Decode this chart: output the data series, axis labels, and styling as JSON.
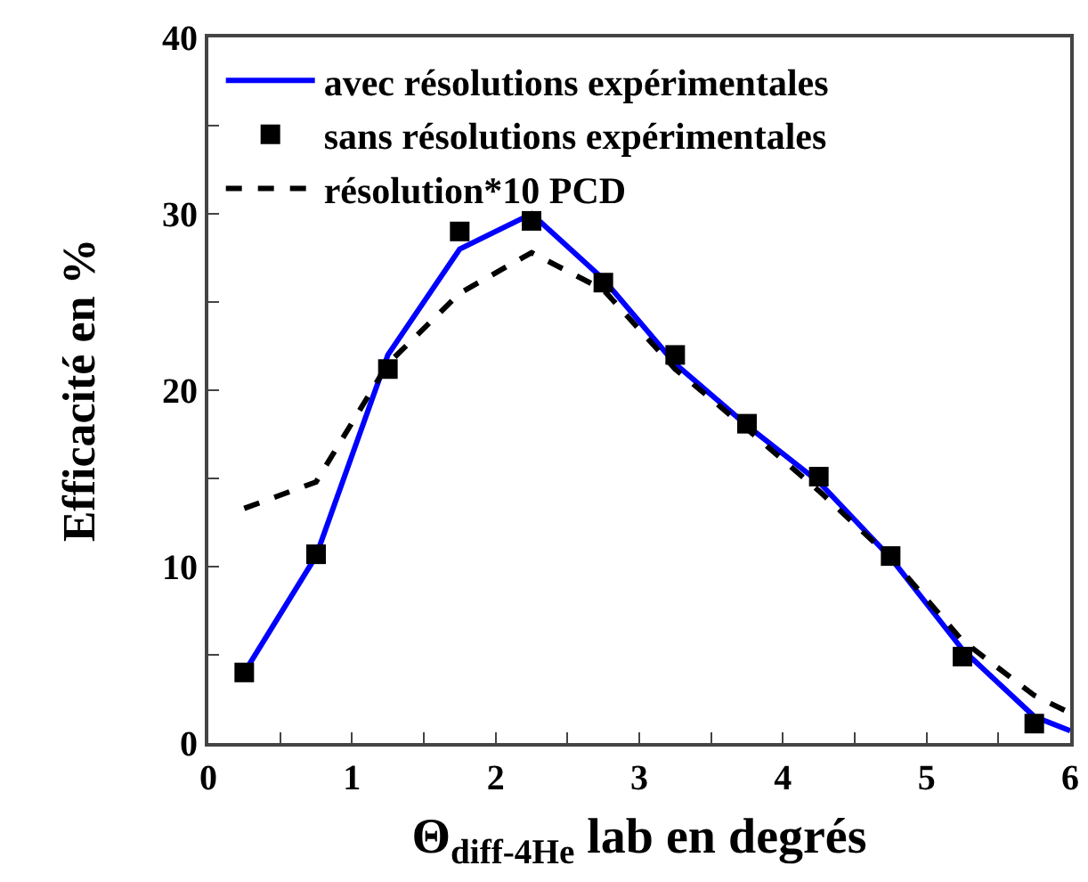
{
  "chart_data": {
    "type": "line",
    "xlabel": "Θ$_{diff-4He}$ lab en degrés",
    "ylabel": "Efficacité en %",
    "xlim": [
      0,
      6
    ],
    "xticks": [
      0,
      {
        "value": 0.5,
        "label": null
      },
      1,
      {
        "value": 1.5,
        "label": null
      },
      2,
      {
        "value": 2.5,
        "label": null
      },
      3,
      {
        "value": 3.5,
        "label": null
      },
      4,
      {
        "value": 4.5,
        "label": null
      },
      5,
      {
        "value": 5.5,
        "label": null
      },
      6
    ],
    "ylim": [
      0,
      40
    ],
    "yticks": [
      0,
      {
        "value": 5,
        "label": null
      },
      10,
      {
        "value": 15,
        "label": null
      },
      20,
      {
        "value": 25,
        "label": null
      },
      30,
      {
        "value": 35,
        "label": null
      },
      40
    ],
    "grid": false,
    "legend": "top left",
    "series": [
      {
        "name": "avec résolutions expérimentales",
        "color": "#0000ff",
        "line_style": "solid",
        "marker": "none",
        "x": [
          0.25,
          0.75,
          1.25,
          1.75,
          2.25,
          2.75,
          3.25,
          3.75,
          4.25,
          4.75,
          5.25,
          5.75,
          6
        ],
        "values": [
          4.0,
          10.6,
          22.0,
          28.0,
          30.0,
          26.3,
          21.5,
          18.0,
          14.8,
          10.5,
          5.3,
          1.5,
          0.7
        ]
      },
      {
        "name": "sans résolutions expérimentales",
        "type": "scatter",
        "color": "#000000",
        "marker": "square",
        "x": [
          0.25,
          0.75,
          1.25,
          1.75,
          2.25,
          2.75,
          3.25,
          3.75,
          4.25,
          4.75,
          5.25,
          5.75
        ],
        "values": [
          4.0,
          10.7,
          21.2,
          29.0,
          29.6,
          26.1,
          22.0,
          18.1,
          15.1,
          10.6,
          4.9,
          1.1
        ]
      },
      {
        "name": "résolution*10 PCD",
        "type": "line",
        "color": "#000000",
        "line_style": "dashed",
        "marker": "none",
        "x": [
          0.25,
          0.75,
          1.25,
          1.75,
          2.25,
          2.75,
          3.25,
          3.75,
          4.25,
          4.75,
          5.25,
          5.75,
          6
        ],
        "values": [
          13.3,
          14.8,
          21.5,
          25.5,
          27.8,
          25.7,
          21.2,
          17.8,
          14.3,
          10.5,
          5.8,
          2.7,
          1.7
        ]
      }
    ]
  }
}
